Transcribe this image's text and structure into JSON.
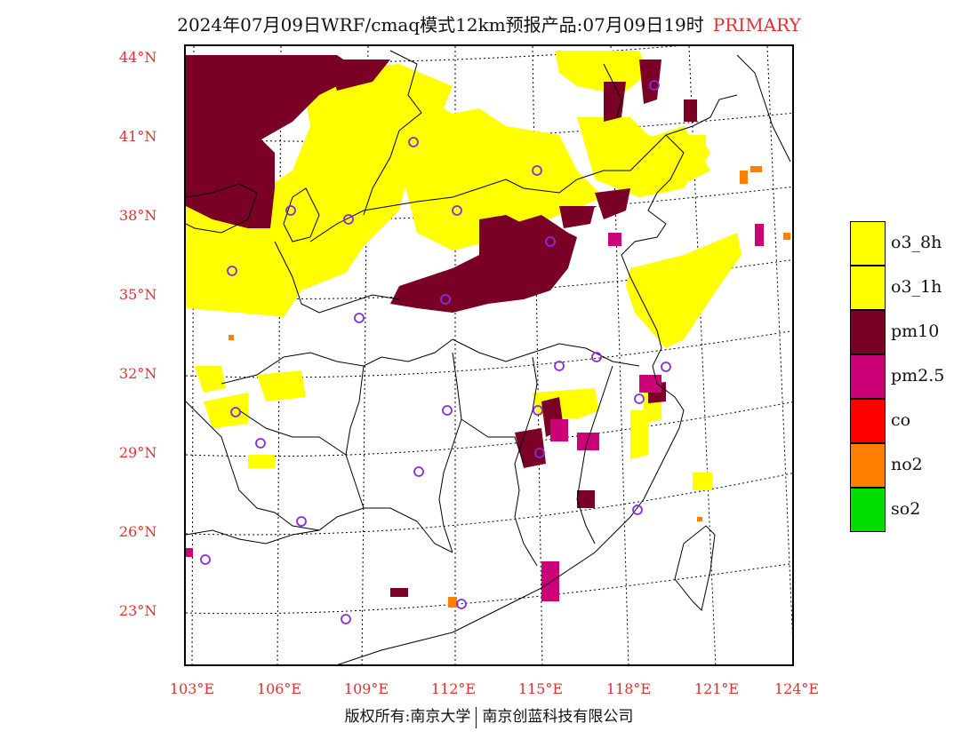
{
  "title": {
    "text": "2024年07月09日WRF/cmaq模式12km预报产品:07月09日19时",
    "tag": "PRIMARY"
  },
  "colors": {
    "o3_8h": "#ffff00",
    "o3_1h": "#ffff00",
    "pm10": "#7a0026",
    "pm2_5": "#cc0077",
    "co": "#ff0000",
    "no2": "#ff7f00",
    "so2": "#00dd00",
    "station_marker": "#8a2be2",
    "axis_label": "#e03030"
  },
  "lat_ticks": [
    "44°N",
    "41°N",
    "38°N",
    "35°N",
    "32°N",
    "29°N",
    "26°N",
    "23°N"
  ],
  "lon_ticks": [
    "103°E",
    "106°E",
    "109°E",
    "112°E",
    "115°E",
    "118°E",
    "121°E",
    "124°E"
  ],
  "legend": [
    {
      "key": "o3_8h",
      "label": "o3_8h"
    },
    {
      "key": "o3_1h",
      "label": "o3_1h"
    },
    {
      "key": "pm10",
      "label": "pm10"
    },
    {
      "key": "pm2_5",
      "label": "pm2.5"
    },
    {
      "key": "co",
      "label": "co"
    },
    {
      "key": "no2",
      "label": "no2"
    },
    {
      "key": "so2",
      "label": "so2"
    }
  ],
  "copyright": {
    "left": "版权所有:南京大学",
    "right": "南京创蓝科技有限公司"
  }
}
